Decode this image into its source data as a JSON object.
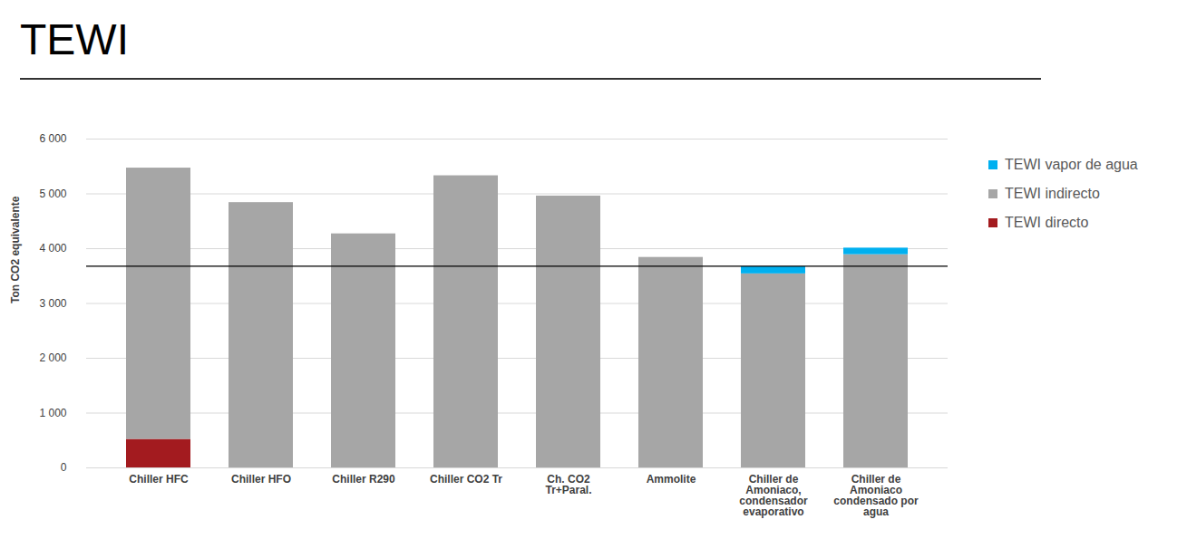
{
  "chart_data": {
    "type": "bar",
    "title": "TEWI",
    "y_label": "Ton CO2 equivalente",
    "categories": [
      "Chiller HFC",
      "Chiller HFO",
      "Chiller R290",
      "Chiller CO2 Tr",
      "Ch. CO2 Tr+Paral.",
      "Ammolite",
      "Chiller de Amoniaco, condensador evaporativo",
      "Chiller de Amoniaco condensado por agua"
    ],
    "series": [
      {
        "name": "TEWI directo",
        "color": "#a31b1f",
        "values": [
          520,
          0,
          0,
          0,
          0,
          0,
          0,
          0
        ]
      },
      {
        "name": "TEWI indirecto",
        "color": "#a6a6a6",
        "values": [
          4950,
          4840,
          4270,
          5330,
          4960,
          3840,
          3540,
          3890
        ]
      },
      {
        "name": "TEWI vapor de agua",
        "color": "#00b0f0",
        "values": [
          0,
          0,
          0,
          0,
          0,
          0,
          130,
          120
        ]
      }
    ],
    "stacked": true,
    "ylim": [
      0,
      6000
    ],
    "yticks": [
      0,
      {
        "value": 1000,
        "label": "1 000"
      },
      {
        "value": 2000,
        "label": "2 000"
      },
      {
        "value": 3000,
        "label": "3 000"
      },
      {
        "value": 4000,
        "label": "4 000"
      },
      {
        "value": 5000,
        "label": "5 000"
      },
      {
        "value": 6000,
        "label": "6 000"
      }
    ],
    "grid": true,
    "legend": "right",
    "reference_line": 3680
  }
}
